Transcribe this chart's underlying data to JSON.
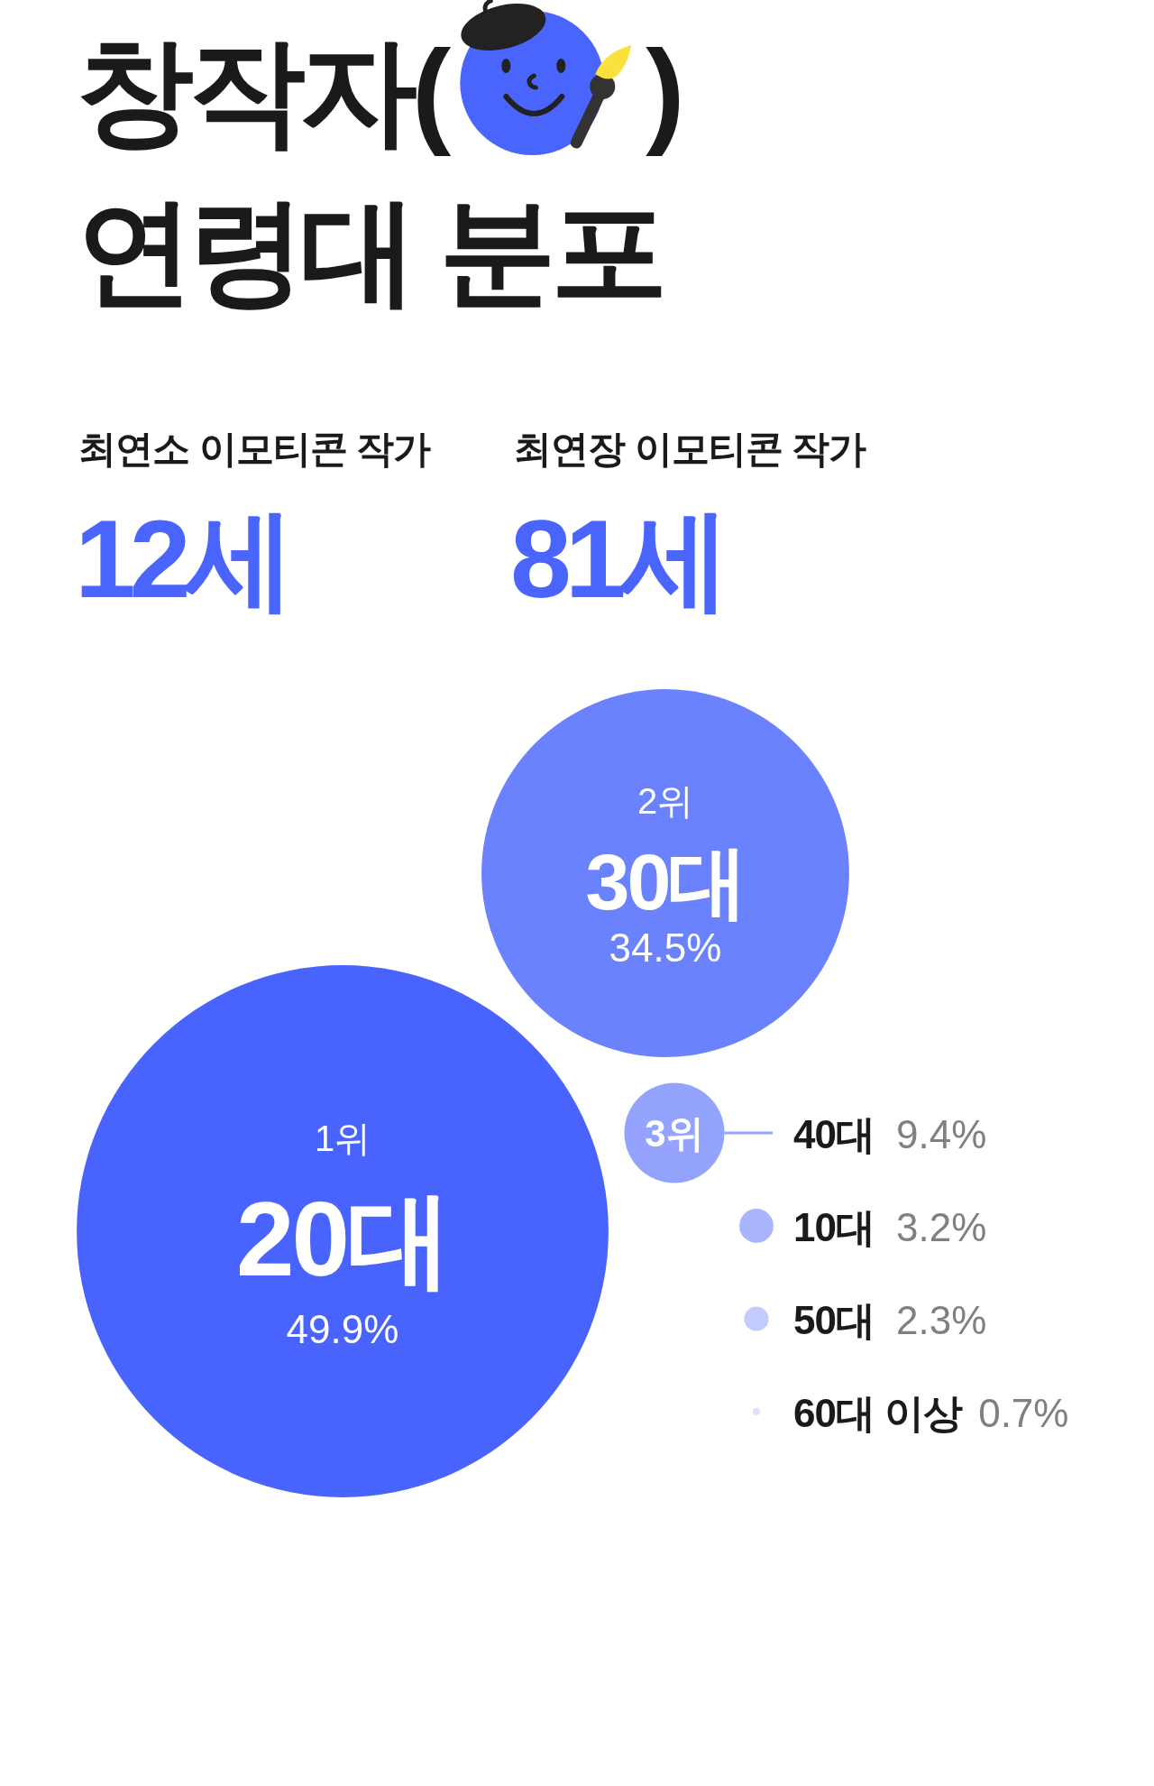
{
  "chart_data": [
    {
      "type": "other",
      "title": "창작자( )\n연령대 분포",
      "annotations": [
        "최연소 이모티콘 작가",
        "12세",
        "최연장 이모티콘 작가",
        "81세"
      ]
    },
    {
      "type": "other",
      "categories": [
        "20대",
        "30대",
        "40대",
        "10대",
        "50대",
        "60대 이상"
      ],
      "values": [
        49.9,
        34.5,
        9.4,
        3.2,
        2.3,
        0.7
      ],
      "value_labels": [
        "49.9%",
        "34.5%",
        "9.4%",
        "3.2%",
        "2.3%",
        "0.7%"
      ],
      "colors": [
        "#4863fe",
        "#6b82fe",
        "#94a4fe",
        "#a9b5fe",
        "#c3cbfd",
        "#dce1fe"
      ],
      "annotations": [
        {
          "text": "1위",
          "x": "20대"
        },
        {
          "text": "2위",
          "x": "30대"
        },
        {
          "text": "3위",
          "x": "40대"
        }
      ]
    }
  ]
}
